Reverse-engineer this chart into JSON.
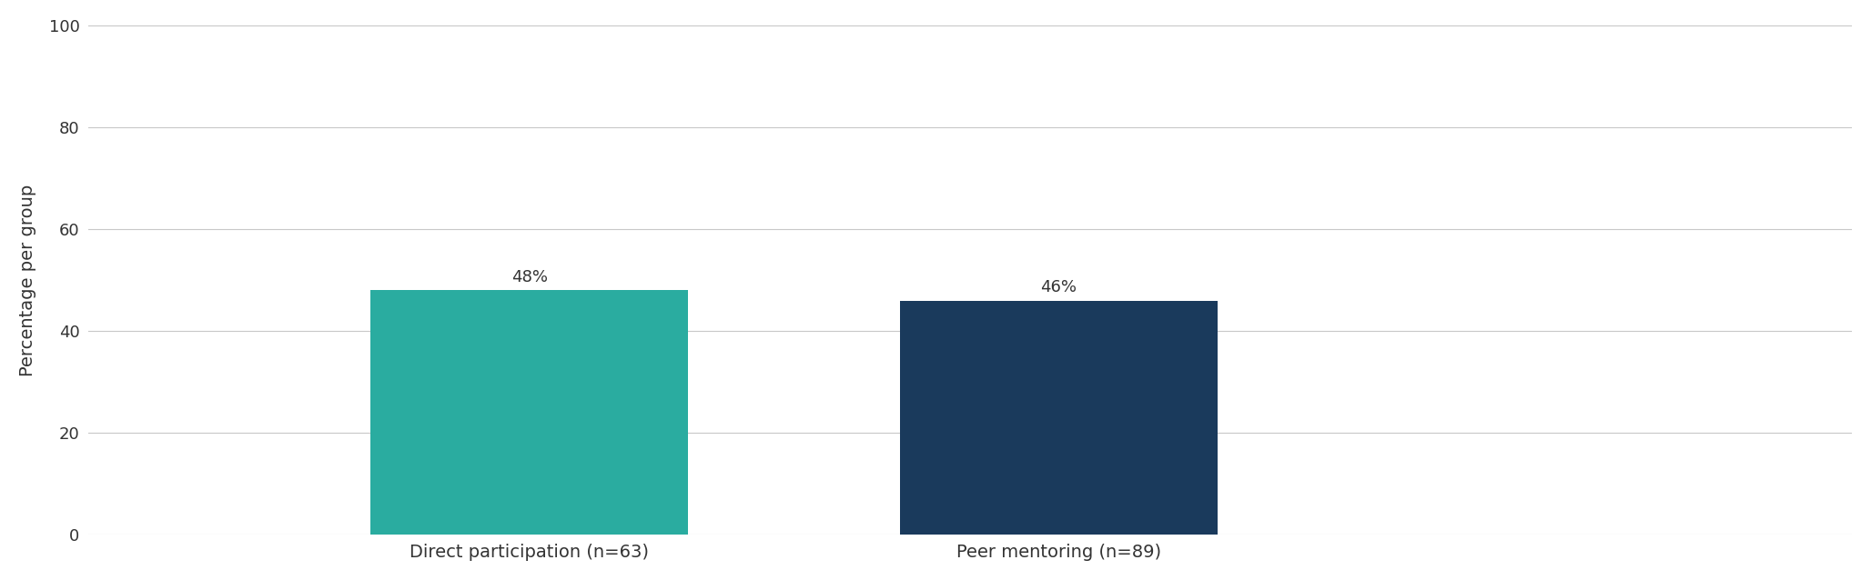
{
  "categories": [
    "Direct participation (n=63)",
    "Peer mentoring (n=89)"
  ],
  "values": [
    48,
    46
  ],
  "bar_colors": [
    "#2aaca0",
    "#1a3a5c"
  ],
  "bar_labels": [
    "48%",
    "46%"
  ],
  "ylabel": "Percentage per group",
  "ylim": [
    0,
    100
  ],
  "yticks": [
    0,
    20,
    40,
    60,
    80,
    100
  ],
  "background_color": "#ffffff",
  "grid_color": "#c8c8c8",
  "label_fontsize": 14,
  "tick_fontsize": 13,
  "ylabel_fontsize": 14,
  "bar_width": 0.18,
  "bar_label_fontsize": 13,
  "x_positions": [
    0.25,
    0.55
  ],
  "xlim": [
    0.0,
    1.0
  ]
}
